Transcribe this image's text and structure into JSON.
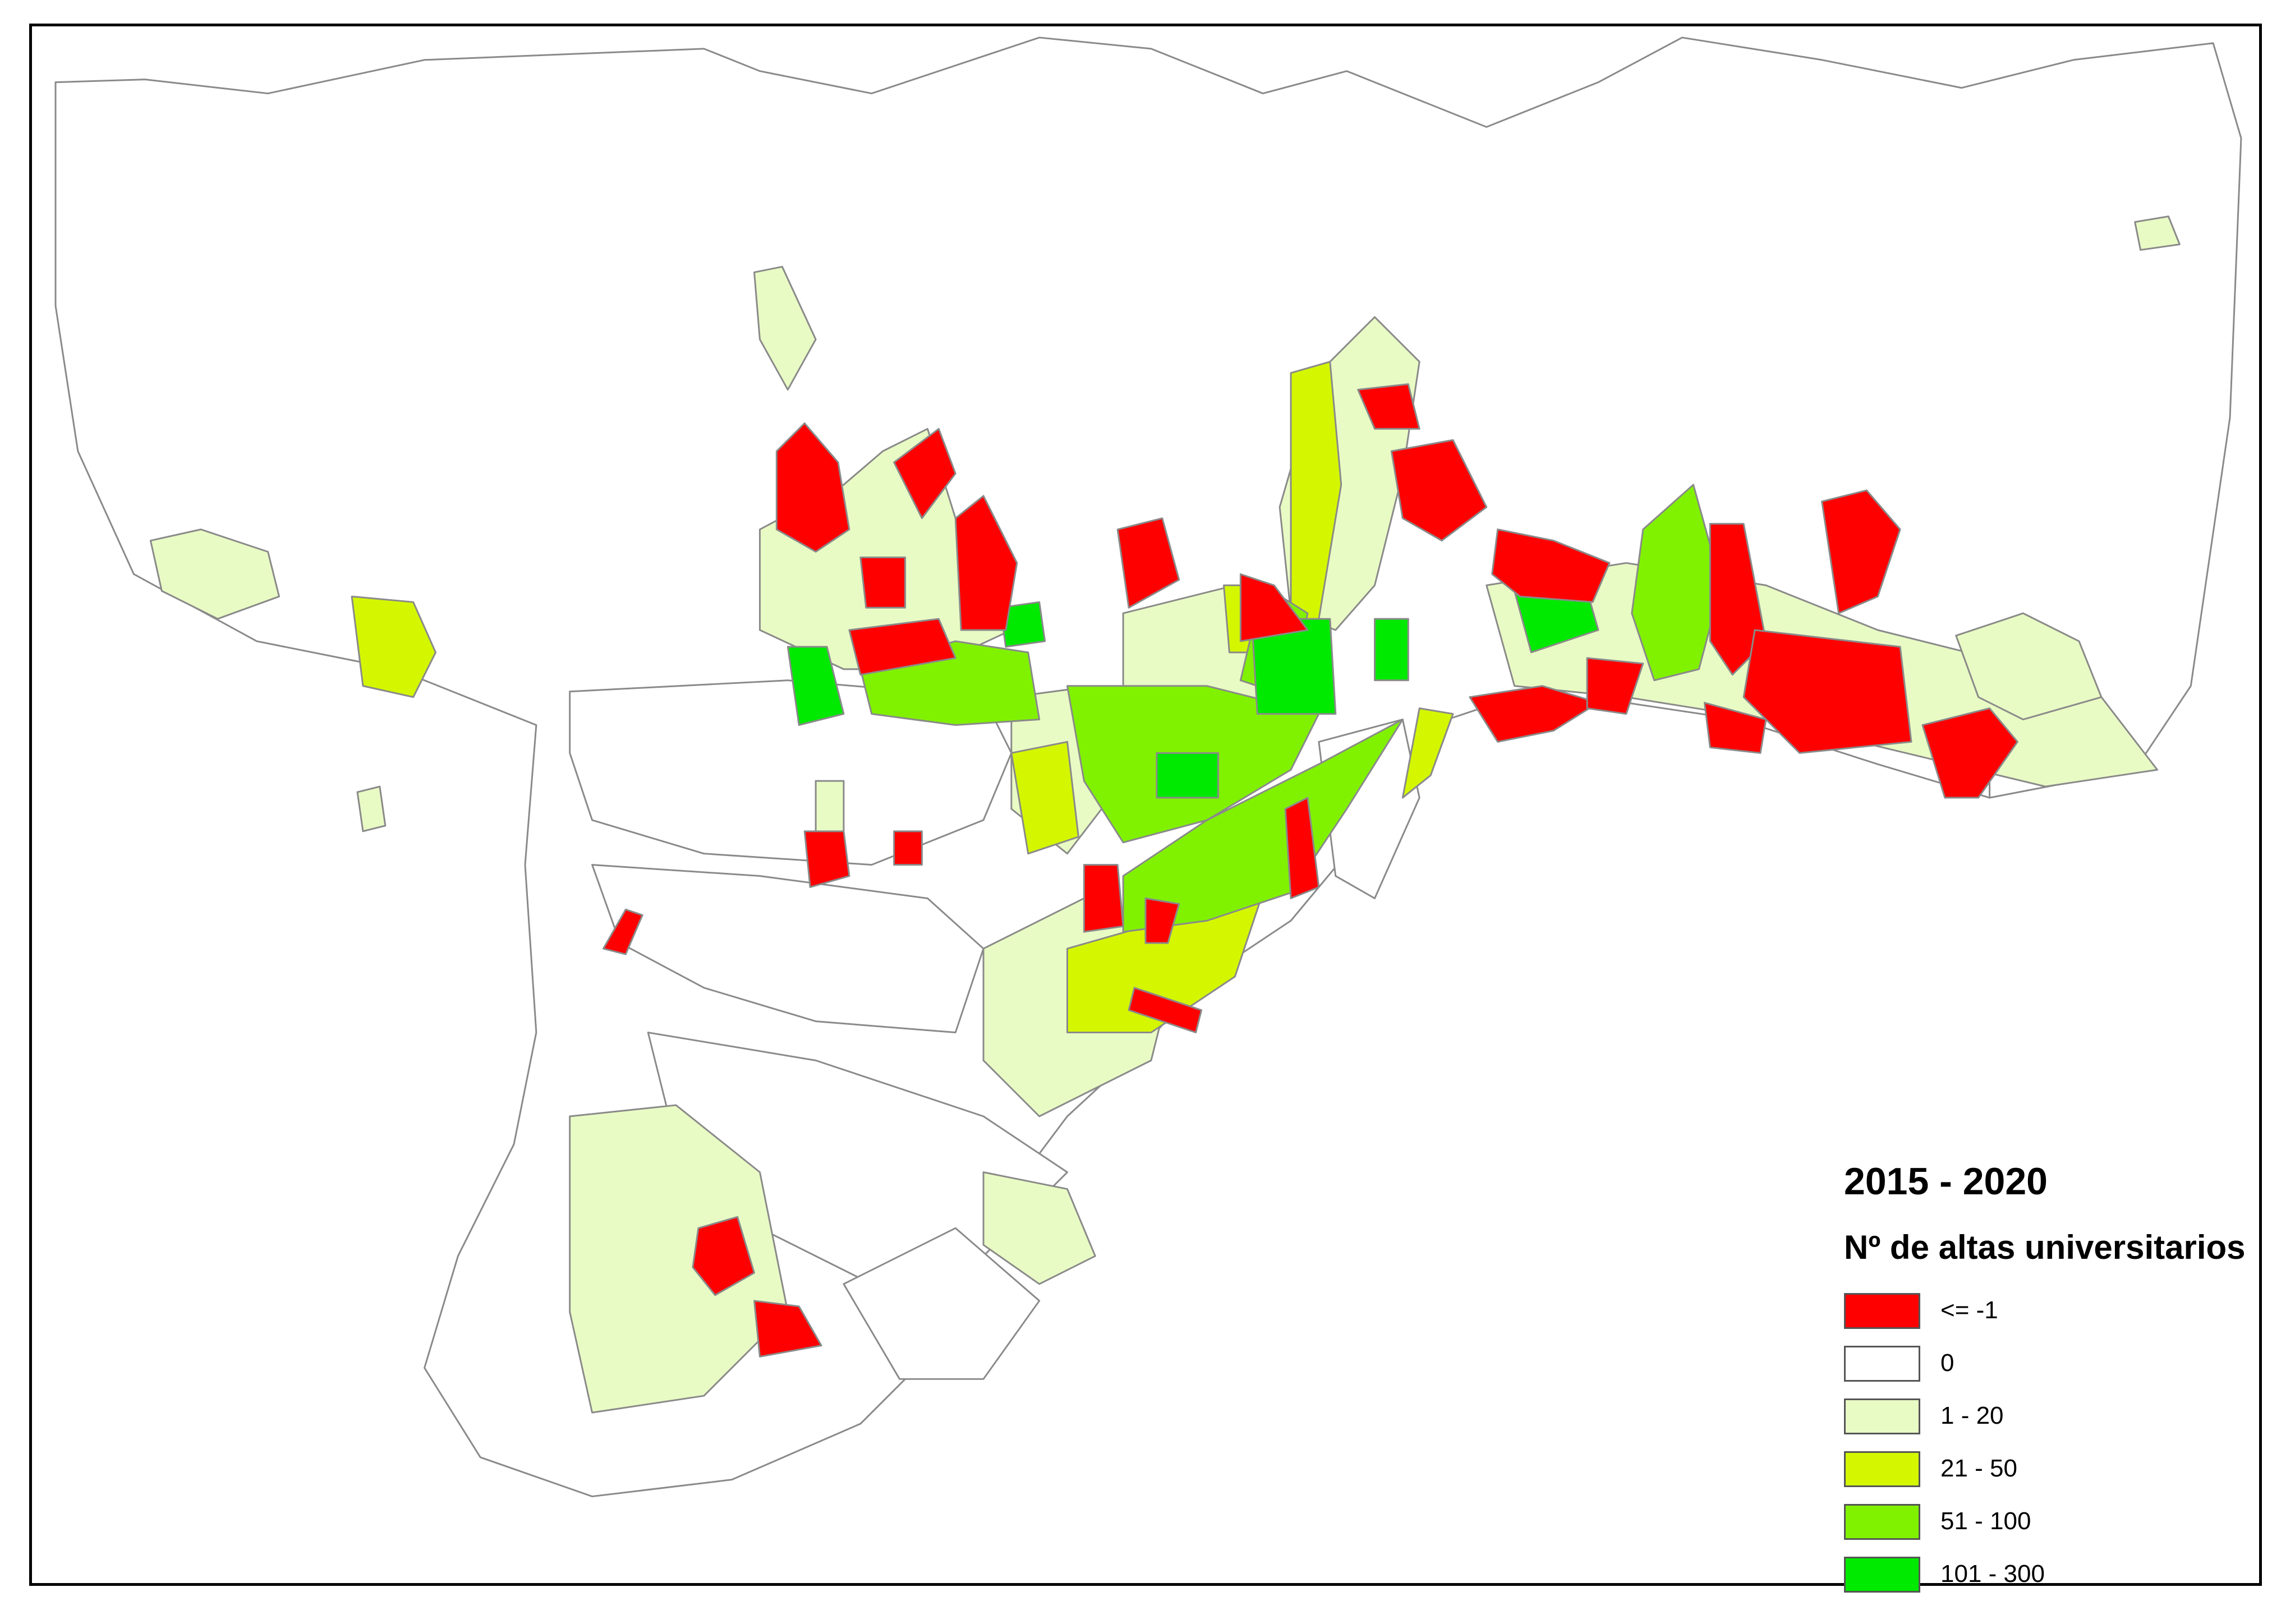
{
  "legend": {
    "title": "2015 - 2020",
    "subtitle": "Nº de altas universitarios",
    "items": [
      {
        "label": "<= -1",
        "color": "#ff0000"
      },
      {
        "label": "0",
        "color": "#ffffff"
      },
      {
        "label": "1 - 20",
        "color": "#e9fbc4"
      },
      {
        "label": "21 - 50",
        "color": "#d4f700"
      },
      {
        "label": "51 - 100",
        "color": "#80f200"
      },
      {
        "label": "101 - 300",
        "color": "#00ea00"
      }
    ]
  }
}
